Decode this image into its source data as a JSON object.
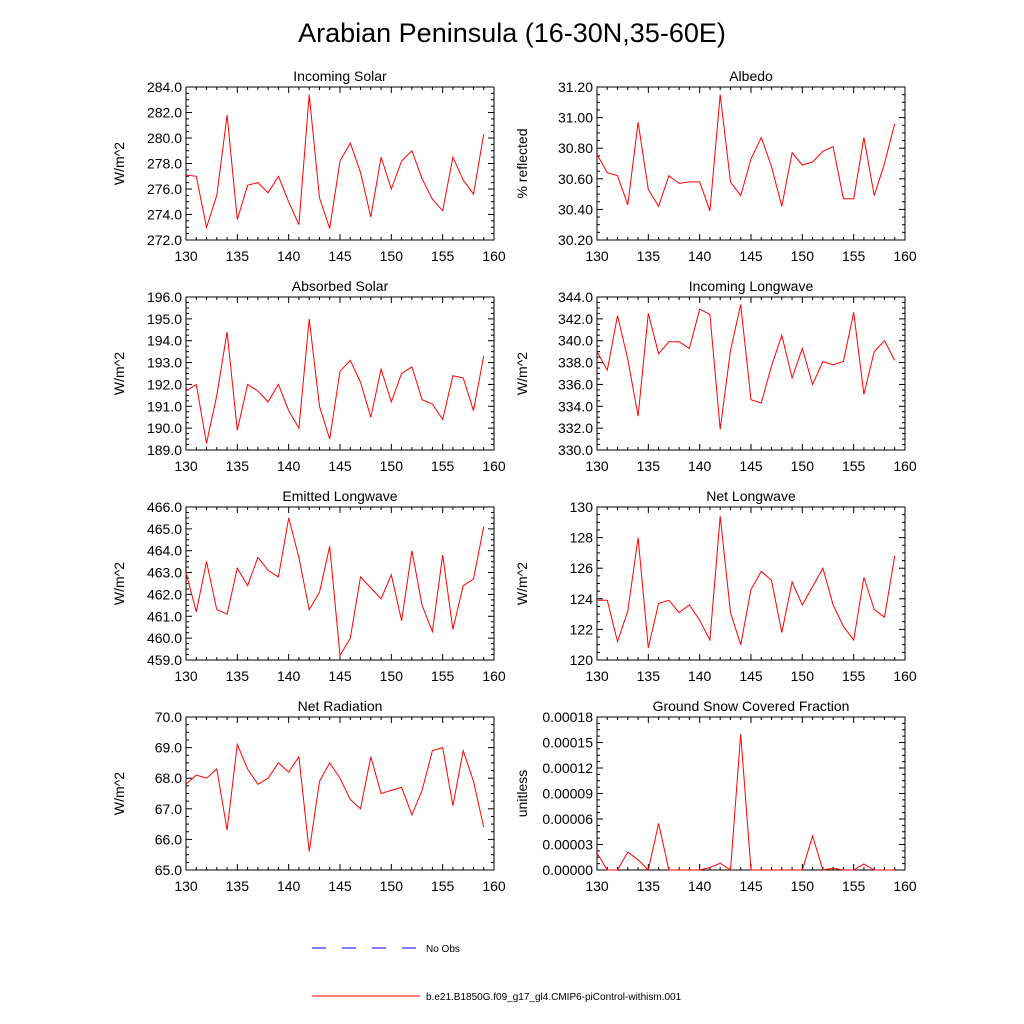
{
  "figure_title": "Arabian Peninsula (16-30N,35-60E)",
  "colors": {
    "model": "#ff0000",
    "obs": "#0000ff",
    "axis": "#000000"
  },
  "legend": {
    "placement": "bottom-center",
    "obs_label": "No Obs",
    "model_label": "b.e21.B1850G.f09_g17_gl4.CMIP6-piControl-withism.001"
  },
  "chart_data": [
    {
      "type": "line",
      "title": "Incoming Solar",
      "xlabel": "",
      "ylabel": "W/m^2",
      "xlim": [
        130,
        160
      ],
      "ylim": [
        272.0,
        284.0
      ],
      "xticks": [
        "130",
        "135",
        "140",
        "145",
        "150",
        "155",
        "160"
      ],
      "yticks": [
        "272.0",
        "274.0",
        "276.0",
        "278.0",
        "280.0",
        "282.0",
        "284.0"
      ],
      "x": [
        130,
        131,
        132,
        133,
        134,
        135,
        136,
        137,
        138,
        139,
        140,
        141,
        142,
        143,
        144,
        145,
        146,
        147,
        148,
        149,
        150,
        151,
        152,
        153,
        154,
        155,
        156,
        157,
        158,
        159
      ],
      "series": [
        {
          "values": [
            277.1,
            277.0,
            273.0,
            275.5,
            281.8,
            273.6,
            276.3,
            276.5,
            275.7,
            277.0,
            275.0,
            273.2,
            283.4,
            275.3,
            272.9,
            278.2,
            279.6,
            277.3,
            273.8,
            278.5,
            276.0,
            278.2,
            279.0,
            276.8,
            275.2,
            274.3,
            278.5,
            276.7,
            275.6,
            280.3
          ]
        }
      ]
    },
    {
      "type": "line",
      "title": "Albedo",
      "xlabel": "",
      "ylabel": "% reflected",
      "xlim": [
        130,
        160
      ],
      "ylim": [
        30.2,
        31.2
      ],
      "xticks": [
        "130",
        "135",
        "140",
        "145",
        "150",
        "155",
        "160"
      ],
      "yticks": [
        "30.20",
        "30.40",
        "30.60",
        "30.80",
        "31.00",
        "31.20"
      ],
      "x": [
        130,
        131,
        132,
        133,
        134,
        135,
        136,
        137,
        138,
        139,
        140,
        141,
        142,
        143,
        144,
        145,
        146,
        147,
        148,
        149,
        150,
        151,
        152,
        153,
        154,
        155,
        156,
        157,
        158,
        159
      ],
      "series": [
        {
          "values": [
            30.76,
            30.64,
            30.62,
            30.43,
            30.97,
            30.53,
            30.42,
            30.62,
            30.57,
            30.58,
            30.58,
            30.39,
            31.15,
            30.58,
            30.49,
            30.73,
            30.87,
            30.68,
            30.42,
            30.77,
            30.69,
            30.71,
            30.78,
            30.81,
            30.47,
            30.47,
            30.87,
            30.49,
            30.7,
            30.96
          ]
        }
      ]
    },
    {
      "type": "line",
      "title": "Absorbed Solar",
      "xlabel": "",
      "ylabel": "W/m^2",
      "xlim": [
        130,
        160
      ],
      "ylim": [
        189.0,
        196.0
      ],
      "xticks": [
        "130",
        "135",
        "140",
        "145",
        "150",
        "155",
        "160"
      ],
      "yticks": [
        "189.0",
        "190.0",
        "191.0",
        "192.0",
        "193.0",
        "194.0",
        "195.0",
        "196.0"
      ],
      "x": [
        130,
        131,
        132,
        133,
        134,
        135,
        136,
        137,
        138,
        139,
        140,
        141,
        142,
        143,
        144,
        145,
        146,
        147,
        148,
        149,
        150,
        151,
        152,
        153,
        154,
        155,
        156,
        157,
        158,
        159
      ],
      "series": [
        {
          "values": [
            191.7,
            192.0,
            189.3,
            191.5,
            194.4,
            189.9,
            192.0,
            191.7,
            191.2,
            192.0,
            190.8,
            190.0,
            195.0,
            191.0,
            189.5,
            192.6,
            193.1,
            192.1,
            190.5,
            192.7,
            191.2,
            192.5,
            192.8,
            191.3,
            191.1,
            190.4,
            192.4,
            192.3,
            190.8,
            193.3
          ]
        }
      ]
    },
    {
      "type": "line",
      "title": "Incoming Longwave",
      "xlabel": "",
      "ylabel": "W/m^2",
      "xlim": [
        130,
        160
      ],
      "ylim": [
        330.0,
        344.0
      ],
      "xticks": [
        "130",
        "135",
        "140",
        "145",
        "150",
        "155",
        "160"
      ],
      "yticks": [
        "330.0",
        "332.0",
        "334.0",
        "336.0",
        "338.0",
        "340.0",
        "342.0",
        "344.0"
      ],
      "x": [
        130,
        131,
        132,
        133,
        134,
        135,
        136,
        137,
        138,
        139,
        140,
        141,
        142,
        143,
        144,
        145,
        146,
        147,
        148,
        149,
        150,
        151,
        152,
        153,
        154,
        155,
        156,
        157,
        158,
        159
      ],
      "series": [
        {
          "values": [
            339.0,
            337.3,
            342.3,
            338.3,
            333.1,
            342.5,
            338.8,
            339.9,
            339.9,
            339.3,
            342.9,
            342.4,
            331.9,
            339.1,
            343.3,
            334.6,
            334.3,
            337.7,
            340.5,
            336.6,
            339.3,
            336.0,
            338.1,
            337.8,
            338.1,
            342.6,
            335.1,
            339.0,
            340.0,
            338.2
          ]
        }
      ]
    },
    {
      "type": "line",
      "title": "Emitted Longwave",
      "xlabel": "",
      "ylabel": "W/m^2",
      "xlim": [
        130,
        160
      ],
      "ylim": [
        459.0,
        466.0
      ],
      "xticks": [
        "130",
        "135",
        "140",
        "145",
        "150",
        "155",
        "160"
      ],
      "yticks": [
        "459.0",
        "460.0",
        "461.0",
        "462.0",
        "463.0",
        "464.0",
        "465.0",
        "466.0"
      ],
      "x": [
        130,
        131,
        132,
        133,
        134,
        135,
        136,
        137,
        138,
        139,
        140,
        141,
        142,
        143,
        144,
        145,
        146,
        147,
        148,
        149,
        150,
        151,
        152,
        153,
        154,
        155,
        156,
        157,
        158,
        159
      ],
      "series": [
        {
          "values": [
            463.0,
            461.2,
            463.5,
            461.3,
            461.1,
            463.2,
            462.4,
            463.7,
            463.1,
            462.8,
            465.5,
            463.7,
            461.3,
            462.1,
            464.2,
            459.2,
            460.0,
            462.8,
            462.3,
            461.8,
            462.9,
            460.8,
            464.0,
            461.5,
            460.3,
            463.8,
            460.4,
            462.4,
            462.7,
            465.1
          ]
        }
      ]
    },
    {
      "type": "line",
      "title": "Net Longwave",
      "xlabel": "",
      "ylabel": "W/m^2",
      "xlim": [
        130,
        160
      ],
      "ylim": [
        120,
        130
      ],
      "xticks": [
        "130",
        "135",
        "140",
        "145",
        "150",
        "155",
        "160"
      ],
      "yticks": [
        "120",
        "122",
        "124",
        "126",
        "128",
        "130"
      ],
      "x": [
        130,
        131,
        132,
        133,
        134,
        135,
        136,
        137,
        138,
        139,
        140,
        141,
        142,
        143,
        144,
        145,
        146,
        147,
        148,
        149,
        150,
        151,
        152,
        153,
        154,
        155,
        156,
        157,
        158,
        159
      ],
      "series": [
        {
          "values": [
            123.9,
            123.9,
            121.2,
            123.2,
            128.0,
            120.8,
            123.7,
            123.9,
            123.1,
            123.6,
            122.6,
            121.3,
            129.4,
            123.1,
            121.0,
            124.6,
            125.8,
            125.2,
            121.8,
            125.1,
            123.6,
            124.8,
            126.0,
            123.6,
            122.2,
            121.3,
            125.4,
            123.3,
            122.8,
            126.8
          ]
        }
      ]
    },
    {
      "type": "line",
      "title": "Net Radiation",
      "xlabel": "",
      "ylabel": "W/m^2",
      "xlim": [
        130,
        160
      ],
      "ylim": [
        65.0,
        70.0
      ],
      "xticks": [
        "130",
        "135",
        "140",
        "145",
        "150",
        "155",
        "160"
      ],
      "yticks": [
        "65.0",
        "66.0",
        "67.0",
        "68.0",
        "69.0",
        "70.0"
      ],
      "x": [
        130,
        131,
        132,
        133,
        134,
        135,
        136,
        137,
        138,
        139,
        140,
        141,
        142,
        143,
        144,
        145,
        146,
        147,
        148,
        149,
        150,
        151,
        152,
        153,
        154,
        155,
        156,
        157,
        158,
        159
      ],
      "series": [
        {
          "values": [
            67.8,
            68.1,
            68.0,
            68.3,
            66.3,
            69.1,
            68.3,
            67.8,
            68.0,
            68.5,
            68.2,
            68.7,
            65.6,
            67.9,
            68.5,
            68.0,
            67.3,
            67.0,
            68.7,
            67.5,
            67.6,
            67.7,
            66.8,
            67.6,
            68.9,
            69.0,
            67.1,
            68.9,
            67.9,
            66.4
          ]
        }
      ]
    },
    {
      "type": "line",
      "title": "Ground Snow Covered Fraction",
      "xlabel": "",
      "ylabel": "unitless",
      "xlim": [
        130,
        160
      ],
      "ylim": [
        0,
        0.00018
      ],
      "xticks": [
        "130",
        "135",
        "140",
        "145",
        "150",
        "155",
        "160"
      ],
      "yticks": [
        "0.00000",
        "0.00003",
        "0.00006",
        "0.00009",
        "0.00012",
        "0.00015",
        "0.00018"
      ],
      "x": [
        130,
        131,
        132,
        133,
        134,
        135,
        136,
        137,
        138,
        139,
        140,
        141,
        142,
        143,
        144,
        145,
        146,
        147,
        148,
        149,
        150,
        151,
        152,
        153,
        154,
        155,
        156,
        157,
        158,
        159
      ],
      "series": [
        {
          "values": [
            2e-05,
            0.0,
            0.0,
            2.1e-05,
            1.2e-05,
            0.0,
            5.5e-05,
            0.0,
            0.0,
            0.0,
            0.0,
            3e-06,
            8e-06,
            0.0,
            0.00016,
            0.0,
            0.0,
            0.0,
            0.0,
            0.0,
            0.0,
            4e-05,
            0.0,
            2e-06,
            0.0,
            0.0,
            7e-06,
            0.0,
            0.0,
            0.0
          ]
        }
      ]
    }
  ]
}
